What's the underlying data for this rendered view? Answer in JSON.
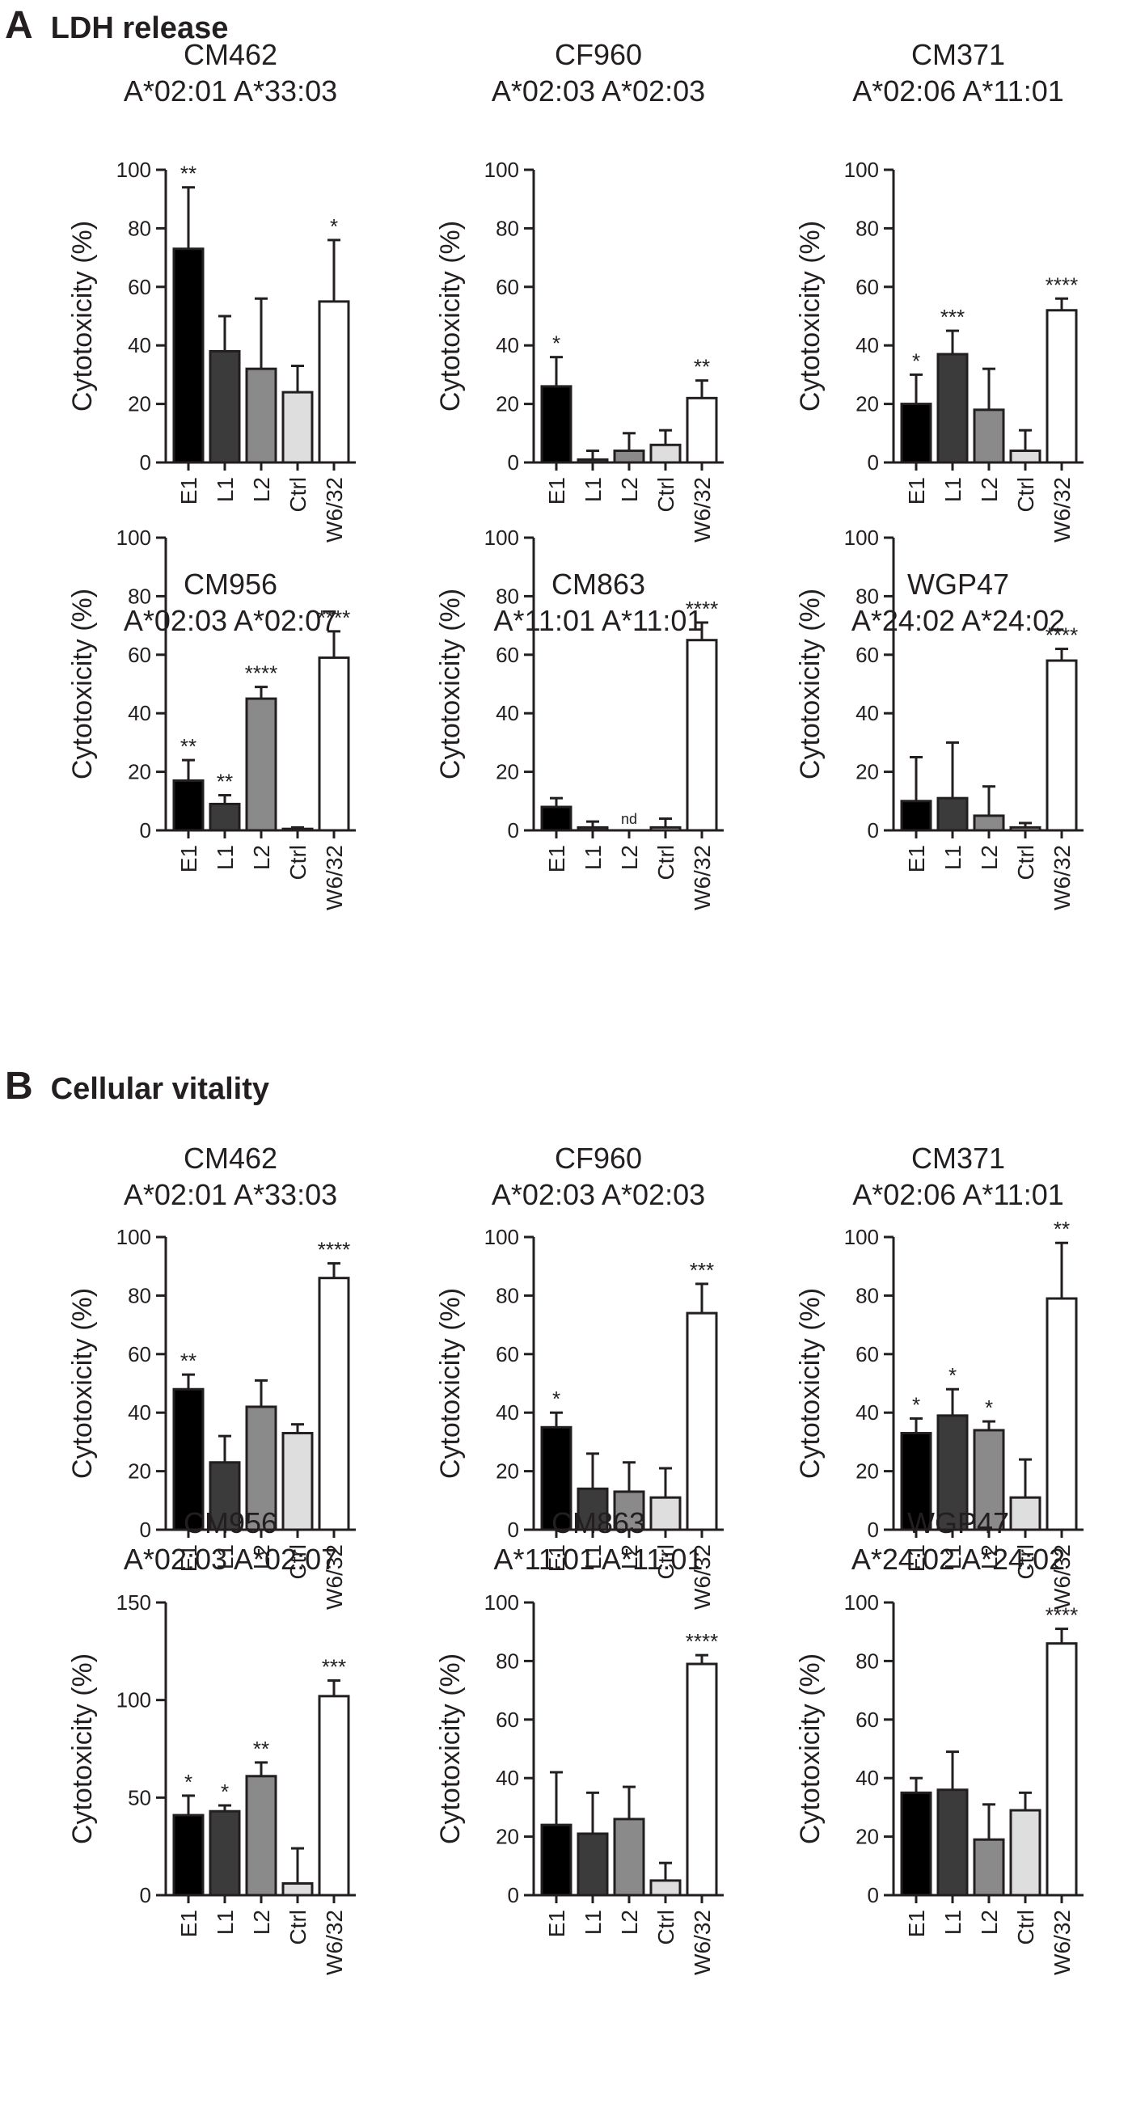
{
  "sections": [
    {
      "letter": "A",
      "title": "LDH release",
      "panels": [
        {
          "donor": "CM462",
          "alleles": "A*02:01 A*33:03"
        },
        {
          "donor": "CF960",
          "alleles": "A*02:03 A*02:03"
        },
        {
          "donor": "CM371",
          "alleles": "A*02:06 A*11:01"
        },
        {
          "donor": "CM956",
          "alleles": "A*02:03 A*02:07"
        },
        {
          "donor": "CM863",
          "alleles": "A*11:01 A*11:01"
        },
        {
          "donor": "WGP47",
          "alleles": "A*24:02 A*24:02"
        }
      ]
    },
    {
      "letter": "B",
      "title": "Cellular vitality",
      "panels": [
        {
          "donor": "CM462",
          "alleles": "A*02:01 A*33:03"
        },
        {
          "donor": "CF960",
          "alleles": "A*02:03 A*02:03"
        },
        {
          "donor": "CM371",
          "alleles": "A*02:06 A*11:01"
        },
        {
          "donor": "CM956",
          "alleles": "A*02:03 A*02:07"
        },
        {
          "donor": "CM863",
          "alleles": "A*11:01 A*11:01"
        },
        {
          "donor": "WGP47",
          "alleles": "A*24:02 A*24:02"
        }
      ]
    }
  ],
  "colors": {
    "E1": "#000000",
    "L1": "#3b3b3b",
    "L2": "#8a8a8a",
    "Ctrl": "#dedede",
    "W6/32": "#ffffff",
    "axis": "#231f20"
  },
  "chart_data": [
    {
      "panel": "A1",
      "type": "bar",
      "title": "CM462",
      "subtitle": "A*02:01 A*33:03",
      "ylabel": "Cytotoxicity (%)",
      "categories": [
        "E1",
        "L1",
        "L2",
        "Ctrl",
        "W6/32"
      ],
      "values": [
        73,
        38,
        32,
        24,
        55
      ],
      "errors": [
        21,
        12,
        24,
        9,
        21
      ],
      "annotations": [
        "**",
        "",
        "",
        "",
        "*"
      ],
      "ylim": [
        0,
        100
      ],
      "yticks": [
        0,
        20,
        40,
        60,
        80,
        100
      ]
    },
    {
      "panel": "A2",
      "type": "bar",
      "title": "CF960",
      "subtitle": "A*02:03 A*02:03",
      "ylabel": "Cytotoxicity (%)",
      "categories": [
        "E1",
        "L1",
        "L2",
        "Ctrl",
        "W6/32"
      ],
      "values": [
        26,
        1,
        4,
        6,
        22
      ],
      "errors": [
        10,
        3,
        6,
        5,
        6
      ],
      "annotations": [
        "*",
        "",
        "",
        "",
        "**"
      ],
      "ylim": [
        0,
        100
      ],
      "yticks": [
        0,
        20,
        40,
        60,
        80,
        100
      ]
    },
    {
      "panel": "A3",
      "type": "bar",
      "title": "CM371",
      "subtitle": "A*02:06 A*11:01",
      "ylabel": "Cytotoxicity (%)",
      "categories": [
        "E1",
        "L1",
        "L2",
        "Ctrl",
        "W6/32"
      ],
      "values": [
        20,
        37,
        18,
        4,
        52
      ],
      "errors": [
        10,
        8,
        14,
        7,
        4
      ],
      "annotations": [
        "*",
        "***",
        "",
        "",
        "****"
      ],
      "ylim": [
        0,
        100
      ],
      "yticks": [
        0,
        20,
        40,
        60,
        80,
        100
      ]
    },
    {
      "panel": "A4",
      "type": "bar",
      "title": "CM956",
      "subtitle": "A*02:03 A*02:07",
      "ylabel": "Cytotoxicity (%)",
      "categories": [
        "E1",
        "L1",
        "L2",
        "Ctrl",
        "W6/32"
      ],
      "values": [
        17,
        9,
        45,
        0.5,
        59
      ],
      "errors": [
        7,
        3,
        4,
        0.5,
        9
      ],
      "annotations": [
        "**",
        "**",
        "****",
        "",
        "****"
      ],
      "ylim": [
        0,
        100
      ],
      "yticks": [
        0,
        20,
        40,
        60,
        80,
        100
      ]
    },
    {
      "panel": "A5",
      "type": "bar",
      "title": "CM863",
      "subtitle": "A*11:01 A*11:01",
      "ylabel": "Cytotoxicity (%)",
      "categories": [
        "E1",
        "L1",
        "L2",
        "Ctrl",
        "W6/32"
      ],
      "values": [
        8,
        1,
        null,
        1,
        65
      ],
      "errors": [
        3,
        2,
        null,
        3,
        6
      ],
      "annotations": [
        "",
        "",
        "nd",
        "",
        "****"
      ],
      "ylim": [
        0,
        100
      ],
      "yticks": [
        0,
        20,
        40,
        60,
        80,
        100
      ]
    },
    {
      "panel": "A6",
      "type": "bar",
      "title": "WGP47",
      "subtitle": "A*24:02 A*24:02",
      "ylabel": "Cytotoxicity (%)",
      "categories": [
        "E1",
        "L1",
        "L2",
        "Ctrl",
        "W6/32"
      ],
      "values": [
        10,
        11,
        5,
        1,
        58
      ],
      "errors": [
        15,
        19,
        10,
        1.5,
        4
      ],
      "annotations": [
        "",
        "",
        "",
        "",
        "****"
      ],
      "ylim": [
        0,
        100
      ],
      "yticks": [
        0,
        20,
        40,
        60,
        80,
        100
      ]
    },
    {
      "panel": "B1",
      "type": "bar",
      "title": "CM462",
      "subtitle": "A*02:01 A*33:03",
      "ylabel": "Cytotoxicity (%)",
      "categories": [
        "E1",
        "L1",
        "L2",
        "Ctrl",
        "W6/32"
      ],
      "values": [
        48,
        23,
        42,
        33,
        86
      ],
      "errors": [
        5,
        9,
        9,
        3,
        5
      ],
      "annotations": [
        "**",
        "",
        "",
        "",
        "****"
      ],
      "ylim": [
        0,
        100
      ],
      "yticks": [
        0,
        20,
        40,
        60,
        80,
        100
      ]
    },
    {
      "panel": "B2",
      "type": "bar",
      "title": "CF960",
      "subtitle": "A*02:03 A*02:03",
      "ylabel": "Cytotoxicity (%)",
      "categories": [
        "E1",
        "L1",
        "L2",
        "Ctrl",
        "W6/32"
      ],
      "values": [
        35,
        14,
        13,
        11,
        74
      ],
      "errors": [
        5,
        12,
        10,
        10,
        10
      ],
      "annotations": [
        "*",
        "",
        "",
        "",
        "***"
      ],
      "ylim": [
        0,
        100
      ],
      "yticks": [
        0,
        20,
        40,
        60,
        80,
        100
      ]
    },
    {
      "panel": "B3",
      "type": "bar",
      "title": "CM371",
      "subtitle": "A*02:06 A*11:01",
      "ylabel": "Cytotoxicity (%)",
      "categories": [
        "E1",
        "L1",
        "L2",
        "Ctrl",
        "W6/32"
      ],
      "values": [
        33,
        39,
        34,
        11,
        79
      ],
      "errors": [
        5,
        9,
        3,
        13,
        19
      ],
      "annotations": [
        "*",
        "*",
        "*",
        "",
        "**"
      ],
      "ylim": [
        0,
        100
      ],
      "yticks": [
        0,
        20,
        40,
        60,
        80,
        100
      ]
    },
    {
      "panel": "B4",
      "type": "bar",
      "title": "CM956",
      "subtitle": "A*02:03 A*02:07",
      "ylabel": "Cytotoxicity (%)",
      "categories": [
        "E1",
        "L1",
        "L2",
        "Ctrl",
        "W6/32"
      ],
      "values": [
        41,
        43,
        61,
        6,
        102
      ],
      "errors": [
        10,
        3,
        7,
        18,
        8
      ],
      "annotations": [
        "*",
        "*",
        "**",
        "",
        "***"
      ],
      "ylim": [
        0,
        150
      ],
      "yticks": [
        0,
        50,
        100,
        150
      ]
    },
    {
      "panel": "B5",
      "type": "bar",
      "title": "CM863",
      "subtitle": "A*11:01 A*11:01",
      "ylabel": "Cytotoxicity (%)",
      "categories": [
        "E1",
        "L1",
        "L2",
        "Ctrl",
        "W6/32"
      ],
      "values": [
        24,
        21,
        26,
        5,
        79
      ],
      "errors": [
        18,
        14,
        11,
        6,
        3
      ],
      "annotations": [
        "",
        "",
        "",
        "",
        "****"
      ],
      "ylim": [
        0,
        100
      ],
      "yticks": [
        0,
        20,
        40,
        60,
        80,
        100
      ]
    },
    {
      "panel": "B6",
      "type": "bar",
      "title": "WGP47",
      "subtitle": "A*24:02 A*24:02",
      "ylabel": "Cytotoxicity (%)",
      "categories": [
        "E1",
        "L1",
        "L2",
        "Ctrl",
        "W6/32"
      ],
      "values": [
        35,
        36,
        19,
        29,
        86
      ],
      "errors": [
        5,
        13,
        12,
        6,
        5
      ],
      "annotations": [
        "",
        "",
        "",
        "",
        "****"
      ],
      "ylim": [
        0,
        100
      ],
      "yticks": [
        0,
        20,
        40,
        60,
        80,
        100
      ]
    }
  ]
}
